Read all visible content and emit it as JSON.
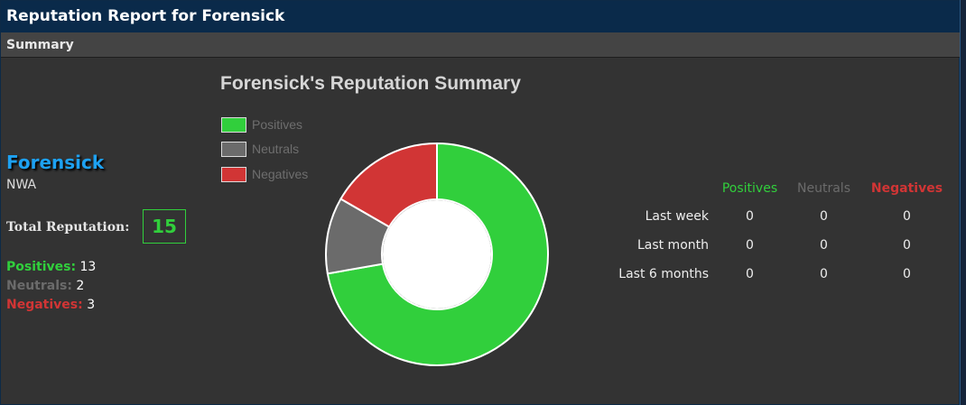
{
  "header": {
    "title": "Reputation Report for Forensick",
    "section": "Summary"
  },
  "user": {
    "name": "Forensick",
    "group": "NWA"
  },
  "totals": {
    "label": "Total Reputation:",
    "value": "15",
    "positives_label": "Positives:",
    "positives": "13",
    "neutrals_label": "Neutrals:",
    "neutrals": "2",
    "negatives_label": "Negatives:",
    "negatives": "3"
  },
  "chart_data": {
    "type": "pie",
    "title": "Forensick's Reputation Summary",
    "categories": [
      "Positives",
      "Neutrals",
      "Negatives"
    ],
    "values": [
      13,
      2,
      3
    ],
    "colors": [
      "#31cf3c",
      "#6b6b6b",
      "#d13535"
    ],
    "legend": "top-left",
    "donut": true
  },
  "stats": {
    "headers": [
      "Positives",
      "Neutrals",
      "Negatives"
    ],
    "rows": [
      {
        "label": "Last week",
        "values": [
          "0",
          "0",
          "0"
        ]
      },
      {
        "label": "Last month",
        "values": [
          "0",
          "0",
          "0"
        ]
      },
      {
        "label": "Last 6 months",
        "values": [
          "0",
          "0",
          "0"
        ]
      }
    ]
  },
  "colors": {
    "accent_blue": "#1da1f2",
    "positive": "#31cf3c",
    "neutral": "#6b6b6b",
    "negative": "#d13535"
  }
}
